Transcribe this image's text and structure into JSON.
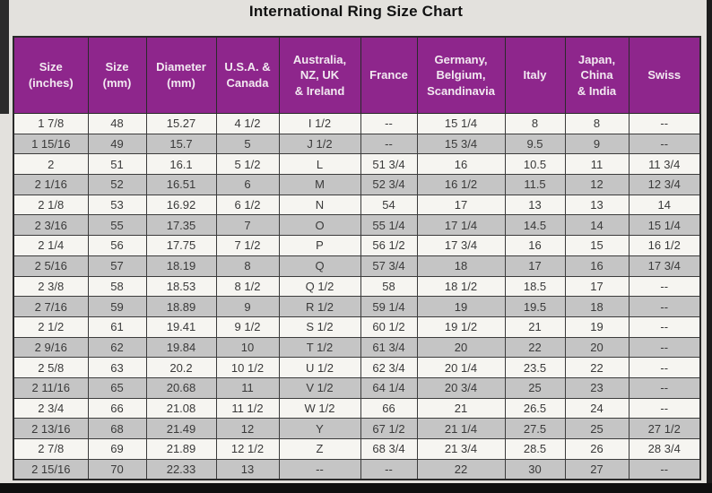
{
  "title": "International Ring Size Chart",
  "colors": {
    "header_bg": "#8E268C",
    "header_text": "#F2E9F1",
    "row_bg": "#F6F5F1",
    "row_alt_bg": "#C5C5C5",
    "page_bg": "#E3E1DD",
    "border": "#2A2A2A",
    "cell_text": "#3A3A3A"
  },
  "chart_data": {
    "type": "table",
    "title": "International Ring Size Chart",
    "columns": [
      "Size\n(inches)",
      "Size\n(mm)",
      "Diameter\n(mm)",
      "U.S.A. &\nCanada",
      "Australia,\nNZ, UK\n& Ireland",
      "France",
      "Germany,\nBelgium,\nScandinavia",
      "Italy",
      "Japan,\nChina\n& India",
      "Swiss"
    ],
    "rows": [
      [
        "1 7/8",
        "48",
        "15.27",
        "4 1/2",
        "I 1/2",
        "--",
        "15 1/4",
        "8",
        "8",
        "--"
      ],
      [
        "1 15/16",
        "49",
        "15.7",
        "5",
        "J 1/2",
        "--",
        "15 3/4",
        "9.5",
        "9",
        "--"
      ],
      [
        "2",
        "51",
        "16.1",
        "5 1/2",
        "L",
        "51 3/4",
        "16",
        "10.5",
        "11",
        "11 3/4"
      ],
      [
        "2 1/16",
        "52",
        "16.51",
        "6",
        "M",
        "52 3/4",
        "16 1/2",
        "11.5",
        "12",
        "12 3/4"
      ],
      [
        "2 1/8",
        "53",
        "16.92",
        "6 1/2",
        "N",
        "54",
        "17",
        "13",
        "13",
        "14"
      ],
      [
        "2 3/16",
        "55",
        "17.35",
        "7",
        "O",
        "55 1/4",
        "17 1/4",
        "14.5",
        "14",
        "15 1/4"
      ],
      [
        "2 1/4",
        "56",
        "17.75",
        "7 1/2",
        "P",
        "56 1/2",
        "17 3/4",
        "16",
        "15",
        "16 1/2"
      ],
      [
        "2 5/16",
        "57",
        "18.19",
        "8",
        "Q",
        "57 3/4",
        "18",
        "17",
        "16",
        "17 3/4"
      ],
      [
        "2 3/8",
        "58",
        "18.53",
        "8 1/2",
        "Q 1/2",
        "58",
        "18 1/2",
        "18.5",
        "17",
        "--"
      ],
      [
        "2 7/16",
        "59",
        "18.89",
        "9",
        "R 1/2",
        "59 1/4",
        "19",
        "19.5",
        "18",
        "--"
      ],
      [
        "2 1/2",
        "61",
        "19.41",
        "9 1/2",
        "S 1/2",
        "60 1/2",
        "19 1/2",
        "21",
        "19",
        "--"
      ],
      [
        "2 9/16",
        "62",
        "19.84",
        "10",
        "T 1/2",
        "61 3/4",
        "20",
        "22",
        "20",
        "--"
      ],
      [
        "2 5/8",
        "63",
        "20.2",
        "10 1/2",
        "U 1/2",
        "62 3/4",
        "20 1/4",
        "23.5",
        "22",
        "--"
      ],
      [
        "2 11/16",
        "65",
        "20.68",
        "11",
        "V 1/2",
        "64 1/4",
        "20 3/4",
        "25",
        "23",
        "--"
      ],
      [
        "2 3/4",
        "66",
        "21.08",
        "11 1/2",
        "W 1/2",
        "66",
        "21",
        "26.5",
        "24",
        "--"
      ],
      [
        "2 13/16",
        "68",
        "21.49",
        "12",
        "Y",
        "67 1/2",
        "21 1/4",
        "27.5",
        "25",
        "27 1/2"
      ],
      [
        "2 7/8",
        "69",
        "21.89",
        "12 1/2",
        "Z",
        "68 3/4",
        "21 3/4",
        "28.5",
        "26",
        "28 3/4"
      ],
      [
        "2 15/16",
        "70",
        "22.33",
        "13",
        "--",
        "--",
        "22",
        "30",
        "27",
        "--"
      ]
    ]
  }
}
